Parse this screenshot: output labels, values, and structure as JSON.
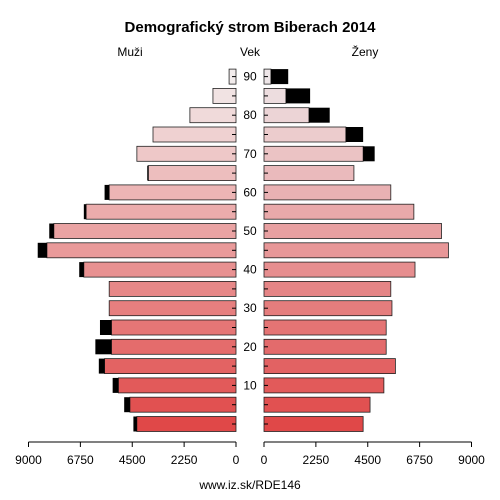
{
  "chart_data": {
    "type": "bar",
    "title": "Demografický strom Biberach 2014",
    "left_label": "Muži",
    "center_label": "Vek",
    "right_label": "Ženy",
    "footer": "www.iz.sk/RDE146",
    "xlim": [
      0,
      9000
    ],
    "x_ticks": [
      "9000",
      "6750",
      "4500",
      "2250",
      "0"
    ],
    "x_ticks_right": [
      "0",
      "2250",
      "4500",
      "6750",
      "9000"
    ],
    "age_ticks": [
      "10",
      "20",
      "30",
      "40",
      "50",
      "60",
      "70",
      "80",
      "90"
    ],
    "age_groups": [
      "0-4",
      "5-9",
      "10-14",
      "15-19",
      "20-24",
      "25-29",
      "30-34",
      "35-39",
      "40-44",
      "45-49",
      "50-54",
      "55-59",
      "60-64",
      "65-69",
      "70-74",
      "75-79",
      "80-84",
      "85-89",
      "90+"
    ],
    "series": [
      {
        "name": "Muži",
        "values": [
          4300,
          4600,
          5100,
          5700,
          5400,
          5400,
          5500,
          5500,
          6600,
          8200,
          7900,
          6500,
          5500,
          3800,
          4300,
          3600,
          2000,
          1000,
          300
        ],
        "surplus": [
          150,
          250,
          250,
          250,
          700,
          500,
          0,
          0,
          200,
          400,
          200,
          100,
          200,
          50,
          0,
          0,
          0,
          0,
          0
        ]
      },
      {
        "name": "Ženy",
        "values": [
          4300,
          4600,
          5200,
          5700,
          5300,
          5300,
          5550,
          5500,
          6550,
          8000,
          7700,
          6500,
          5500,
          3900,
          4300,
          3550,
          1950,
          950,
          300
        ],
        "surplus": [
          0,
          0,
          0,
          0,
          0,
          0,
          0,
          0,
          0,
          0,
          0,
          0,
          0,
          0,
          500,
          750,
          900,
          1050,
          750
        ]
      }
    ]
  }
}
